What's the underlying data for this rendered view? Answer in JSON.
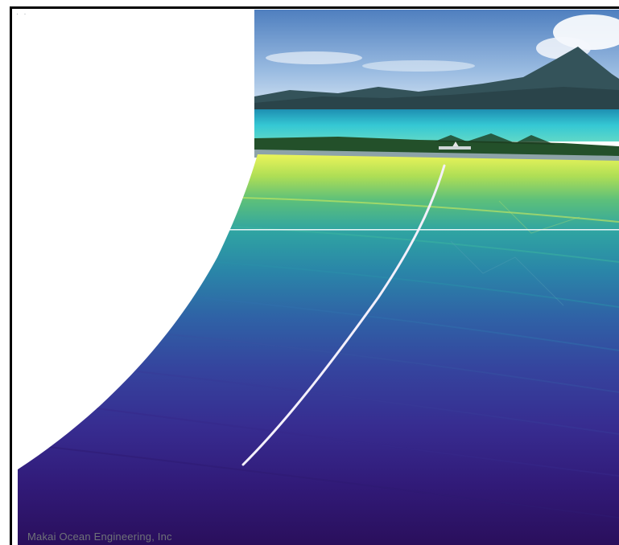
{
  "image": {
    "credit": "Makai Ocean Engineering, Inc"
  },
  "colors": {
    "sky_top": "#5a86c0",
    "sky_bottom": "#a9c6e6",
    "mountain": "#2f4a52",
    "lagoon": "#2ec6d2",
    "shoreline": "#1f4a24",
    "bathymetry_shallow": "#e9f25a",
    "bathymetry_mid": "#2aa6a6",
    "bathymetry_deep": "#3a2a8a",
    "bathymetry_deepest": "#2a0e5a",
    "pipeline": "#f2eefa"
  }
}
